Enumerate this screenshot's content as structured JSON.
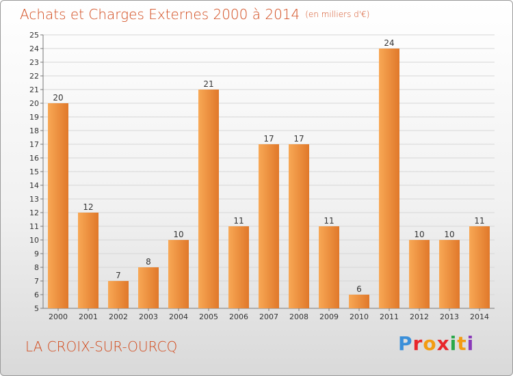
{
  "title": "Achats et Charges Externes 2000 à 2014",
  "unit": "(en milliers d'€)",
  "town": "LA CROIX-SUR-OURCQ",
  "logo": "Proxiti",
  "logo_colors": [
    "#3a8fd9",
    "#e8262b",
    "#f39c12",
    "#e8262b",
    "#2aa84a",
    "#f39c12",
    "#8a3ab9"
  ],
  "chart_data": {
    "type": "bar",
    "title": "Achats et Charges Externes 2000 à 2014",
    "subtitle": "(en milliers d'€)",
    "xlabel": "",
    "ylabel": "",
    "categories": [
      "2000",
      "2001",
      "2002",
      "2003",
      "2004",
      "2005",
      "2006",
      "2007",
      "2008",
      "2009",
      "2010",
      "2011",
      "2012",
      "2013",
      "2014"
    ],
    "values": [
      20,
      12,
      7,
      8,
      10,
      21,
      11,
      17,
      17,
      11,
      6,
      24,
      10,
      10,
      11
    ],
    "ylim": [
      5,
      25
    ],
    "yticks": [
      5,
      6,
      7,
      8,
      9,
      10,
      11,
      12,
      13,
      14,
      15,
      16,
      17,
      18,
      19,
      20,
      21,
      22,
      23,
      24,
      25
    ],
    "grid": true,
    "bar_color_light": "#f8a855",
    "bar_color_dark": "#e0782a"
  }
}
